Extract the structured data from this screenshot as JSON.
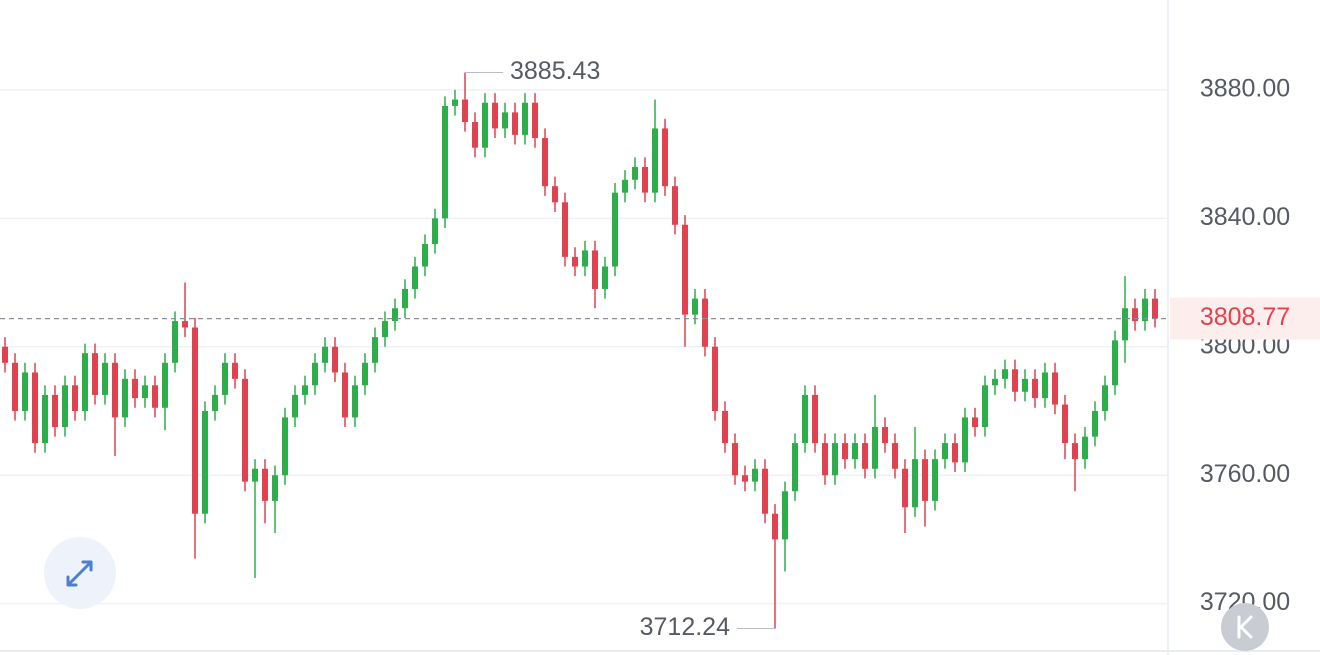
{
  "chart_data": {
    "type": "candlestick",
    "up_color": "#2eae4b",
    "down_color": "#e0434f",
    "ylim": [
      3704,
      3908
    ],
    "yticks": [
      {
        "value": 3720,
        "label": "3720.00"
      },
      {
        "value": 3760,
        "label": "3760.00"
      },
      {
        "value": 3800,
        "label": "3800.00"
      },
      {
        "value": 3840,
        "label": "3840.00"
      },
      {
        "value": 3880,
        "label": "3880.00"
      }
    ],
    "grid": true,
    "open": [
      3800,
      3795,
      3780,
      3792,
      3770,
      3785,
      3775,
      3788,
      3780,
      3798,
      3785,
      3795,
      3778,
      3790,
      3784,
      3788,
      3781,
      3795,
      3808,
      3806,
      3748,
      3780,
      3785,
      3795,
      3790,
      3758,
      3762,
      3752,
      3760,
      3778,
      3785,
      3788,
      3795,
      3800,
      3792,
      3778,
      3788,
      3795,
      3803,
      3808,
      3812,
      3818,
      3825,
      3832,
      3840,
      3875,
      3877,
      3870,
      3862,
      3876,
      3868,
      3873,
      3866,
      3876,
      3865,
      3850,
      3845,
      3828,
      3825,
      3830,
      3818,
      3825,
      3848,
      3852,
      3856,
      3848,
      3868,
      3850,
      3838,
      3810,
      3815,
      3800,
      3780,
      3770,
      3760,
      3758,
      3762,
      3748,
      3740,
      3755,
      3770,
      3785,
      3770,
      3760,
      3770,
      3765,
      3770,
      3762,
      3775,
      3770,
      3762,
      3750,
      3765,
      3752,
      3765,
      3770,
      3764,
      3778,
      3775,
      3788,
      3790,
      3793,
      3786,
      3790,
      3784,
      3792,
      3782,
      3770,
      3765,
      3772,
      3780,
      3788,
      3802,
      3812,
      3808,
      3815
    ],
    "high": [
      3803,
      3798,
      3795,
      3795,
      3788,
      3788,
      3791,
      3791,
      3801,
      3801,
      3798,
      3798,
      3793,
      3793,
      3791,
      3791,
      3798,
      3811,
      3820,
      3809,
      3783,
      3788,
      3798,
      3798,
      3793,
      3765,
      3765,
      3763,
      3781,
      3788,
      3791,
      3798,
      3803,
      3803,
      3795,
      3791,
      3798,
      3806,
      3811,
      3815,
      3821,
      3828,
      3835,
      3843,
      3878,
      3880,
      3885.43,
      3873,
      3879,
      3879,
      3876,
      3876,
      3879,
      3879,
      3868,
      3853,
      3848,
      3831,
      3833,
      3833,
      3828,
      3851,
      3855,
      3859,
      3859,
      3877,
      3871,
      3853,
      3841,
      3818,
      3818,
      3803,
      3783,
      3773,
      3763,
      3765,
      3765,
      3751,
      3758,
      3773,
      3788,
      3788,
      3773,
      3773,
      3773,
      3773,
      3773,
      3785,
      3778,
      3773,
      3765,
      3775,
      3768,
      3768,
      3773,
      3773,
      3781,
      3781,
      3791,
      3793,
      3796,
      3796,
      3793,
      3793,
      3795,
      3795,
      3785,
      3773,
      3775,
      3783,
      3791,
      3805,
      3822,
      3815,
      3818,
      3818
    ],
    "low": [
      3792,
      3777,
      3777,
      3767,
      3767,
      3772,
      3772,
      3777,
      3777,
      3782,
      3782,
      3766,
      3775,
      3781,
      3781,
      3778,
      3774,
      3792,
      3803,
      3734,
      3745,
      3777,
      3782,
      3787,
      3755,
      3728,
      3745,
      3742,
      3757,
      3775,
      3782,
      3785,
      3792,
      3789,
      3775,
      3775,
      3785,
      3792,
      3800,
      3805,
      3809,
      3815,
      3822,
      3829,
      3837,
      3872,
      3867,
      3859,
      3859,
      3865,
      3865,
      3863,
      3863,
      3862,
      3847,
      3842,
      3825,
      3822,
      3822,
      3812,
      3815,
      3822,
      3845,
      3849,
      3845,
      3845,
      3847,
      3835,
      3800,
      3807,
      3797,
      3777,
      3767,
      3757,
      3755,
      3755,
      3745,
      3712.24,
      3730,
      3752,
      3767,
      3767,
      3757,
      3757,
      3762,
      3762,
      3759,
      3759,
      3767,
      3759,
      3742,
      3747,
      3744,
      3749,
      3762,
      3761,
      3761,
      3772,
      3772,
      3785,
      3787,
      3783,
      3783,
      3781,
      3781,
      3779,
      3765,
      3755,
      3762,
      3769,
      3777,
      3785,
      3795,
      3805,
      3805,
      3806
    ],
    "close": [
      3795,
      3780,
      3792,
      3770,
      3785,
      3775,
      3788,
      3780,
      3798,
      3785,
      3795,
      3778,
      3790,
      3784,
      3788,
      3781,
      3795,
      3808,
      3806,
      3748,
      3780,
      3785,
      3795,
      3790,
      3758,
      3762,
      3752,
      3760,
      3778,
      3785,
      3788,
      3795,
      3800,
      3792,
      3778,
      3788,
      3795,
      3803,
      3808,
      3812,
      3818,
      3825,
      3832,
      3840,
      3875,
      3877,
      3870,
      3862,
      3876,
      3868,
      3873,
      3866,
      3876,
      3865,
      3850,
      3845,
      3828,
      3825,
      3830,
      3818,
      3825,
      3848,
      3852,
      3856,
      3848,
      3868,
      3850,
      3838,
      3810,
      3815,
      3800,
      3780,
      3770,
      3760,
      3758,
      3762,
      3748,
      3740,
      3755,
      3770,
      3785,
      3770,
      3760,
      3770,
      3765,
      3770,
      3762,
      3775,
      3770,
      3762,
      3750,
      3765,
      3752,
      3765,
      3770,
      3764,
      3778,
      3775,
      3788,
      3790,
      3793,
      3786,
      3790,
      3784,
      3792,
      3782,
      3770,
      3765,
      3772,
      3780,
      3788,
      3802,
      3812,
      3808,
      3815,
      3808.77
    ]
  }
}
